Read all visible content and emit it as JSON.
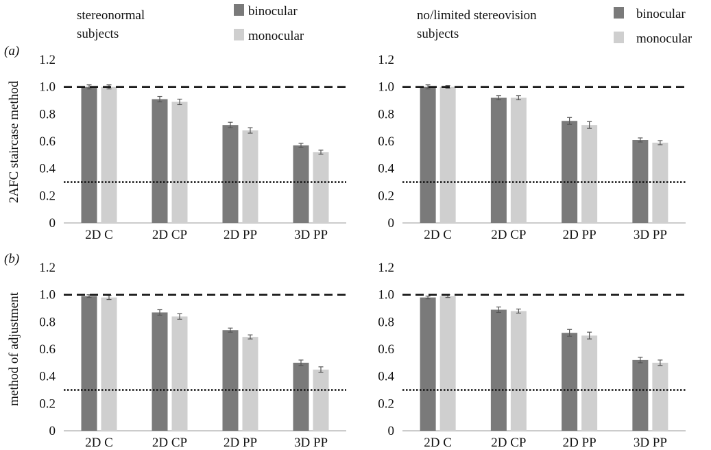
{
  "colors": {
    "binocular": "#7a7a7a",
    "monocular": "#cfcfcf",
    "reference_line": "#111111",
    "error_bar": "#555555"
  },
  "panel_labels": [
    "(a)",
    "(b)"
  ],
  "row_ylabels": [
    "2AFC staircase method",
    "method of adjustment"
  ],
  "column_headers": [
    [
      "stereonormal",
      "subjects"
    ],
    [
      "no/limited stereovision",
      "subjects"
    ]
  ],
  "legend": {
    "binocular": "binocular",
    "monocular": "monocular"
  },
  "chart_data": [
    {
      "type": "bar",
      "title": "",
      "ylabel": "2AFC staircase method",
      "categories": [
        "2D C",
        "2D CP",
        "2D PP",
        "3D PP"
      ],
      "ylim": [
        0,
        1.2
      ],
      "yticks": [
        "0",
        "0.2",
        "0.4",
        "0.6",
        "0.8",
        "1.0",
        "1.2"
      ],
      "reference_lines": [
        {
          "style": "dashed",
          "value": 1.0
        },
        {
          "style": "dotted",
          "value": 0.3
        }
      ],
      "legend_position": "top-right",
      "series": [
        {
          "name": "binocular",
          "values": [
            1.0,
            0.91,
            0.72,
            0.57
          ],
          "errors": [
            0.015,
            0.02,
            0.02,
            0.015
          ]
        },
        {
          "name": "monocular",
          "values": [
            1.0,
            0.89,
            0.68,
            0.52
          ],
          "errors": [
            0.015,
            0.02,
            0.02,
            0.015
          ]
        }
      ]
    },
    {
      "type": "bar",
      "title": "",
      "ylabel": "",
      "categories": [
        "2D C",
        "2D CP",
        "2D PP",
        "3D PP"
      ],
      "ylim": [
        0,
        1.2
      ],
      "yticks": [
        "0",
        "0.2",
        "0.4",
        "0.6",
        "0.8",
        "1.0",
        "1.2"
      ],
      "reference_lines": [
        {
          "style": "dashed",
          "value": 1.0
        },
        {
          "style": "dotted",
          "value": 0.3
        }
      ],
      "legend_position": "top-right",
      "series": [
        {
          "name": "binocular",
          "values": [
            1.0,
            0.92,
            0.75,
            0.61
          ],
          "errors": [
            0.015,
            0.015,
            0.025,
            0.015
          ]
        },
        {
          "name": "monocular",
          "values": [
            1.0,
            0.92,
            0.72,
            0.59
          ],
          "errors": [
            0.01,
            0.015,
            0.025,
            0.015
          ]
        }
      ]
    },
    {
      "type": "bar",
      "title": "",
      "ylabel": "method of adjustment",
      "categories": [
        "2D C",
        "2D CP",
        "2D PP",
        "3D PP"
      ],
      "ylim": [
        0,
        1.2
      ],
      "yticks": [
        "0",
        "0.2",
        "0.4",
        "0.6",
        "0.8",
        "1.0",
        "1.2"
      ],
      "reference_lines": [
        {
          "style": "dashed",
          "value": 1.0
        },
        {
          "style": "dotted",
          "value": 0.3
        }
      ],
      "series": [
        {
          "name": "binocular",
          "values": [
            0.99,
            0.87,
            0.74,
            0.5
          ],
          "errors": [
            0.01,
            0.02,
            0.015,
            0.02
          ]
        },
        {
          "name": "monocular",
          "values": [
            0.98,
            0.84,
            0.69,
            0.45
          ],
          "errors": [
            0.015,
            0.02,
            0.015,
            0.02
          ]
        }
      ]
    },
    {
      "type": "bar",
      "title": "",
      "ylabel": "",
      "categories": [
        "2D C",
        "2D CP",
        "2D PP",
        "3D PP"
      ],
      "ylim": [
        0,
        1.2
      ],
      "yticks": [
        "0",
        "0.2",
        "0.4",
        "0.6",
        "0.8",
        "1.0",
        "1.2"
      ],
      "reference_lines": [
        {
          "style": "dashed",
          "value": 1.0
        },
        {
          "style": "dotted",
          "value": 0.3
        }
      ],
      "series": [
        {
          "name": "binocular",
          "values": [
            0.98,
            0.89,
            0.72,
            0.52
          ],
          "errors": [
            0.01,
            0.02,
            0.025,
            0.02
          ]
        },
        {
          "name": "monocular",
          "values": [
            0.99,
            0.88,
            0.7,
            0.5
          ],
          "errors": [
            0.01,
            0.015,
            0.025,
            0.02
          ]
        }
      ]
    }
  ]
}
